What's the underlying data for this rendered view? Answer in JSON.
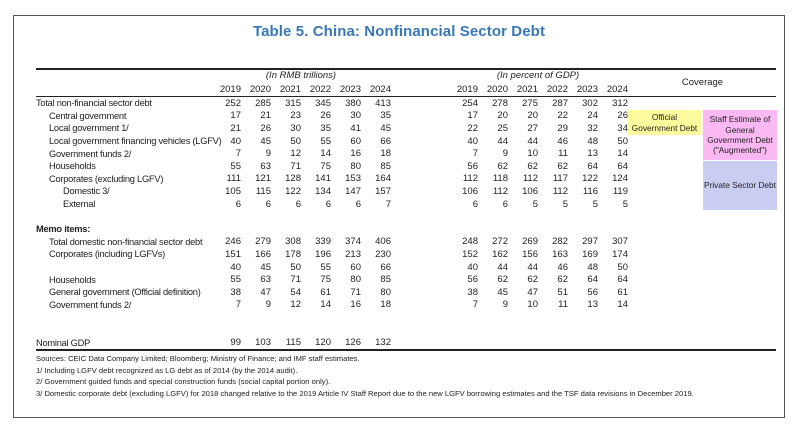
{
  "title": "Table 5. China: Nonfinancial Sector Debt",
  "colors": {
    "title_accent": "#3878b8",
    "official_box": "#fcfc9e",
    "augmented_box": "#fab9f3",
    "private_box": "#c9cdf2"
  },
  "header": {
    "group_rmb": "(In RMB trillions)",
    "group_pct": "(In percent of GDP)",
    "coverage": "Coverage",
    "years": [
      "2019",
      "2020",
      "2021",
      "2022",
      "2023",
      "2024"
    ]
  },
  "table": {
    "rows": [
      {
        "label": "Total non-financial sector debt",
        "indent": 0,
        "rmb": [
          252,
          285,
          315,
          345,
          380,
          413
        ],
        "pct": [
          254,
          278,
          275,
          287,
          302,
          312
        ]
      },
      {
        "label": "Central government",
        "indent": 1,
        "rmb": [
          17,
          21,
          23,
          26,
          30,
          35
        ],
        "pct": [
          17,
          20,
          20,
          22,
          24,
          26
        ]
      },
      {
        "label": "Local government 1/",
        "indent": 1,
        "rmb": [
          21,
          26,
          30,
          35,
          41,
          45
        ],
        "pct": [
          22,
          25,
          27,
          29,
          32,
          34
        ]
      },
      {
        "label": "Local government financing vehicles (LGFV)",
        "indent": 1,
        "rmb": [
          40,
          45,
          50,
          55,
          60,
          66
        ],
        "pct": [
          40,
          44,
          44,
          46,
          48,
          50
        ]
      },
      {
        "label": "Government funds 2/",
        "indent": 1,
        "rmb": [
          7,
          9,
          12,
          14,
          16,
          18
        ],
        "pct": [
          7,
          9,
          10,
          11,
          13,
          14
        ]
      },
      {
        "label": "Households",
        "indent": 1,
        "rmb": [
          55,
          63,
          71,
          75,
          80,
          85
        ],
        "pct": [
          56,
          62,
          62,
          62,
          64,
          64
        ]
      },
      {
        "label": "Corporates (excluding LGFV)",
        "indent": 1,
        "rmb": [
          111,
          121,
          128,
          141,
          153,
          164
        ],
        "pct": [
          112,
          118,
          112,
          117,
          122,
          124
        ]
      },
      {
        "label": "Domestic 3/",
        "indent": 2,
        "rmb": [
          105,
          115,
          122,
          134,
          147,
          157
        ],
        "pct": [
          106,
          112,
          106,
          112,
          116,
          119
        ]
      },
      {
        "label": "External",
        "indent": 2,
        "rmb": [
          6,
          6,
          6,
          6,
          6,
          7
        ],
        "pct": [
          6,
          6,
          5,
          5,
          5,
          5
        ]
      },
      {
        "blank": true
      },
      {
        "label": "Memo items:",
        "indent": 0,
        "bold": true,
        "rmb": [],
        "pct": []
      },
      {
        "label": "Total domestic non-financial sector debt",
        "indent": 1,
        "rmb": [
          246,
          279,
          308,
          339,
          374,
          406
        ],
        "pct": [
          248,
          272,
          269,
          282,
          297,
          307
        ]
      },
      {
        "label": "Corporates (including LGFVs)",
        "indent": 1,
        "rmb": [
          151,
          166,
          178,
          196,
          213,
          230
        ],
        "pct": [
          152,
          162,
          156,
          163,
          169,
          174
        ]
      },
      {
        "label": "",
        "indent": 1,
        "rmb": [
          40,
          45,
          50,
          55,
          60,
          66
        ],
        "pct": [
          40,
          44,
          44,
          46,
          48,
          50
        ]
      },
      {
        "label": "Households",
        "indent": 1,
        "rmb": [
          55,
          63,
          71,
          75,
          80,
          85
        ],
        "pct": [
          56,
          62,
          62,
          62,
          64,
          64
        ]
      },
      {
        "label": "General government (Official definition)",
        "indent": 1,
        "rmb": [
          38,
          47,
          54,
          61,
          71,
          80
        ],
        "pct": [
          38,
          45,
          47,
          51,
          56,
          61
        ]
      },
      {
        "label": "Government funds 2/",
        "indent": 1,
        "rmb": [
          7,
          9,
          12,
          14,
          16,
          18
        ],
        "pct": [
          7,
          9,
          10,
          11,
          13,
          14
        ]
      },
      {
        "blank": true
      },
      {
        "blank": true
      },
      {
        "label": "Nominal GDP",
        "indent": 0,
        "rmb": [
          99,
          103,
          115,
          120,
          126,
          132
        ],
        "pct": [
          "",
          "",
          "",
          "",
          "",
          ""
        ]
      }
    ]
  },
  "coverage": {
    "boxes": [
      {
        "label": "Official Government Debt",
        "color": "#fcfc9e"
      },
      {
        "label": "Staff Estimate of General Government Debt (\"Augmented\")",
        "color": "#fab9f3"
      },
      {
        "label": "Private Sector Debt",
        "color": "#c9cdf2"
      }
    ]
  },
  "footnotes": [
    "Sources: CEIC Data Company Limited; Bloomberg; Ministry of Finance; and IMF staff estimates.",
    "1/ Including LGFV debt recognized as LG debt as of 2014 (by the 2014 audit).",
    "2/ Government guided funds and special construction funds (social capital portion only).",
    "3/ Domestic corporate debt (excluding LGFV) for 2018 changed relative to the 2019 Article IV Staff Report due to the new LGFV borrowing estimates and the TSF data revisions in December 2019."
  ]
}
